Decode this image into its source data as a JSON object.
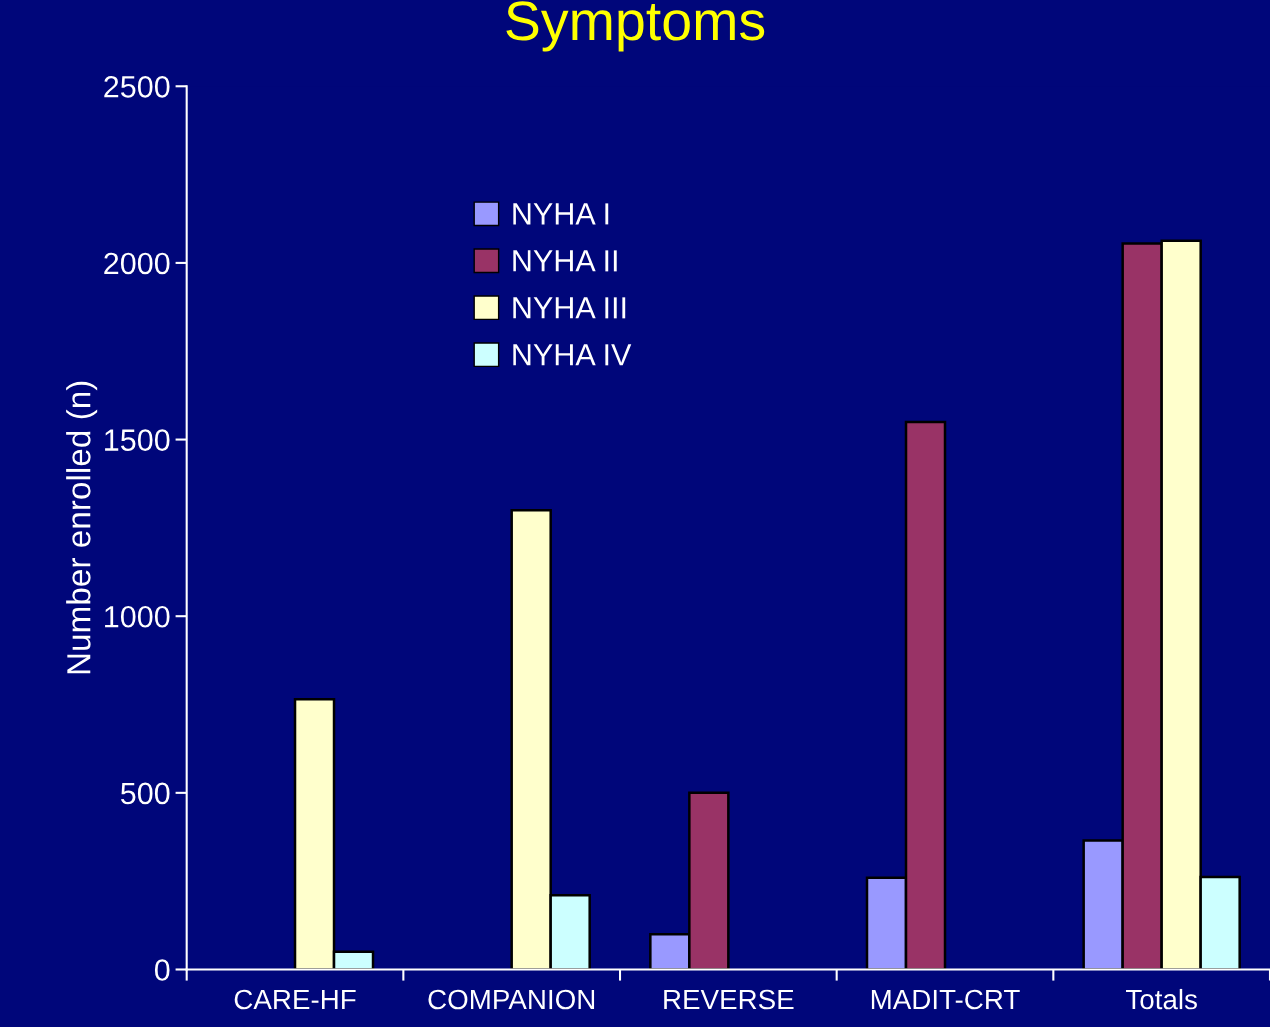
{
  "chart_data": {
    "type": "bar",
    "title": "Symptoms",
    "ylabel": "Number enrolled (n)",
    "categories": [
      "CARE-HF",
      "COMPANION",
      "REVERSE",
      "MADIT-CRT",
      "Totals"
    ],
    "series": [
      {
        "name": "NYHA I",
        "color": "#9999ff",
        "values": [
          null,
          null,
          100,
          260,
          365
        ]
      },
      {
        "name": "NYHA II",
        "color": "#993366",
        "values": [
          null,
          null,
          500,
          1550,
          2055
        ]
      },
      {
        "name": "NYHA III",
        "color": "#ffffcc",
        "values": [
          765,
          1300,
          null,
          null,
          2063
        ]
      },
      {
        "name": "NYHA IV",
        "color": "#ccffff",
        "values": [
          50,
          210,
          null,
          null,
          262
        ]
      }
    ],
    "ylim": [
      0,
      2500
    ],
    "yticks": [
      0,
      500,
      1000,
      1500,
      2000,
      2500
    ],
    "grid": false,
    "legend": "top left"
  }
}
